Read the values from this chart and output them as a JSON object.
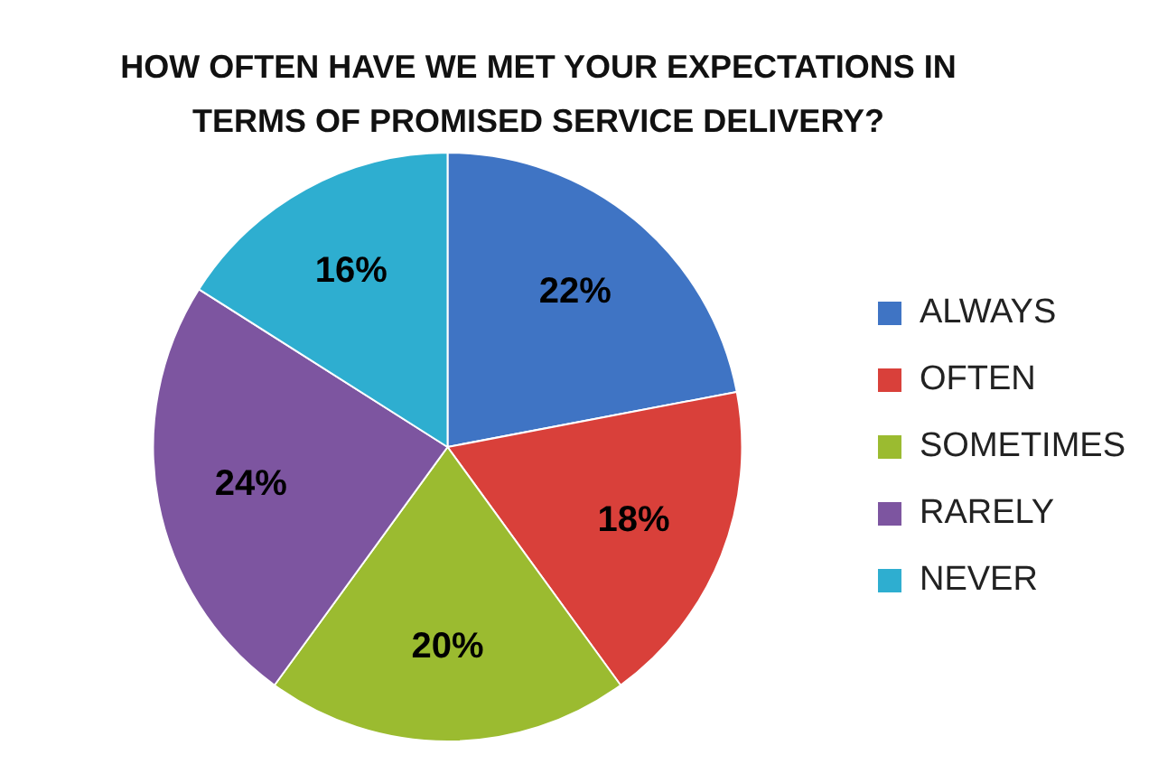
{
  "chart_data": {
    "type": "pie",
    "title": "HOW OFTEN HAVE WE MET YOUR EXPECTATIONS IN TERMS OF PROMISED SERVICE DELIVERY?",
    "categories": [
      "ALWAYS",
      "OFTEN",
      "SOMETIMES",
      "RARELY",
      "NEVER"
    ],
    "values": [
      22,
      18,
      20,
      24,
      16
    ],
    "value_labels": [
      "22%",
      "18%",
      "20%",
      "24%",
      "16%"
    ],
    "colors": [
      "#3f74c4",
      "#d9403a",
      "#9bbb30",
      "#7d55a0",
      "#2eaed0"
    ],
    "legend": "right"
  }
}
